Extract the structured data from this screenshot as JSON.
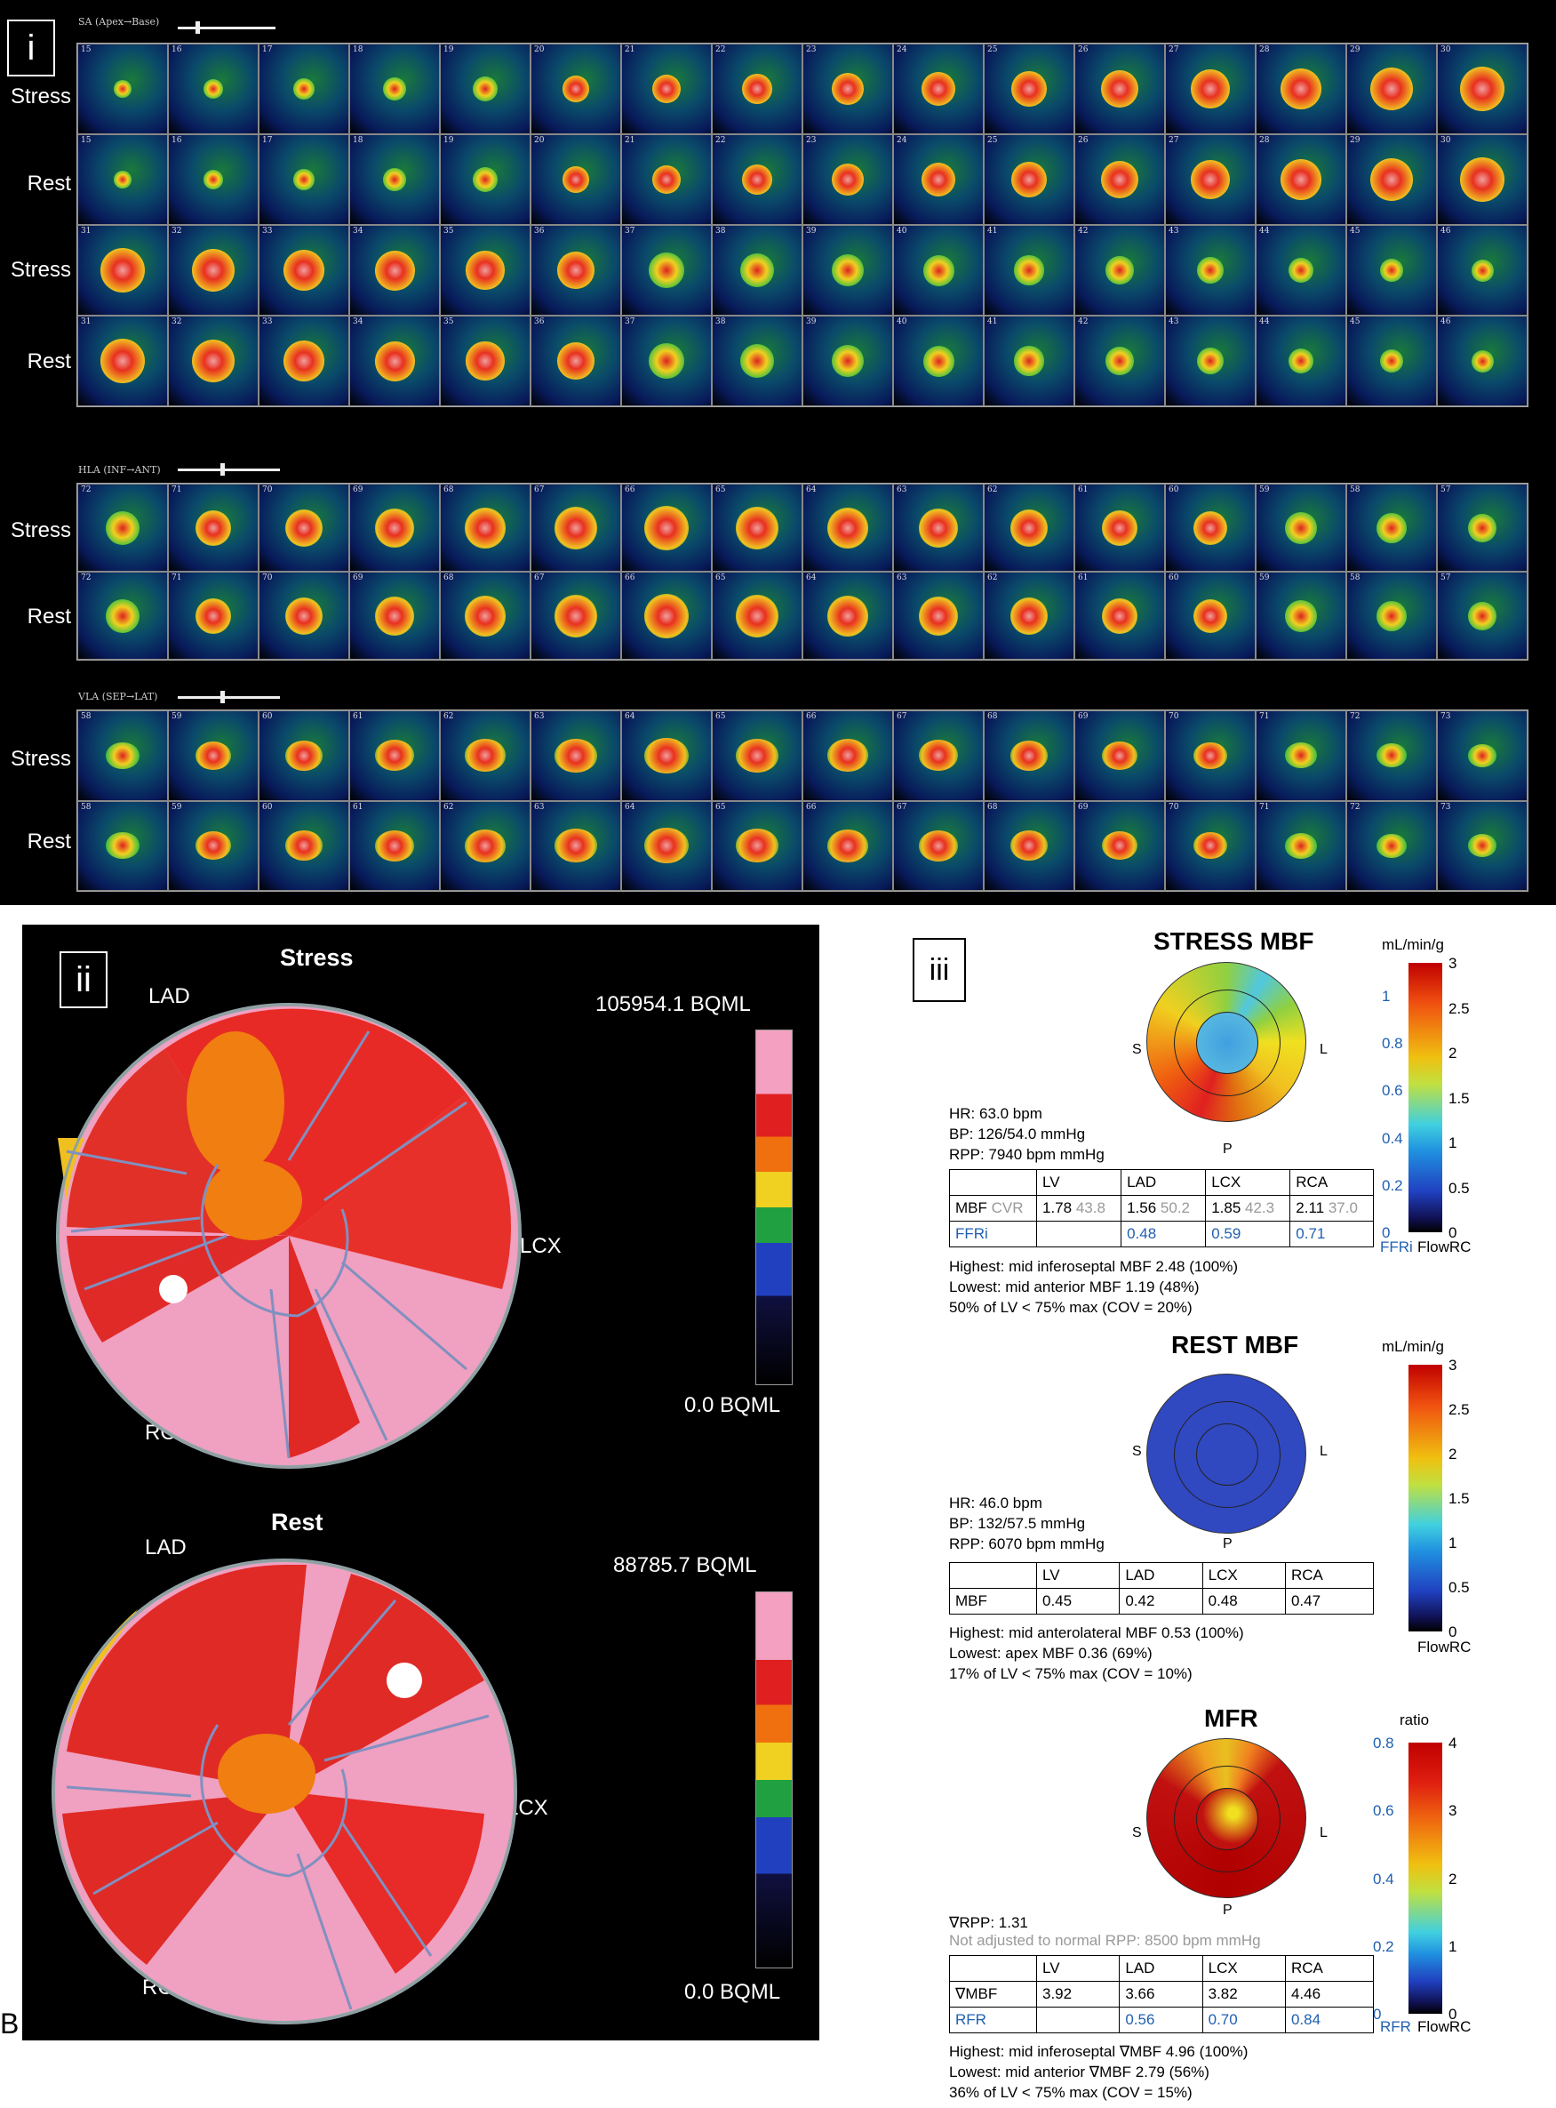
{
  "panel_i": {
    "label": "i",
    "sections": [
      {
        "title": "SA (Apex→Base)",
        "rows": [
          {
            "label": "Stress",
            "numbers": [
              "15",
              "16",
              "17",
              "18",
              "19",
              "20",
              "21",
              "22",
              "23",
              "24",
              "25",
              "26",
              "27",
              "28",
              "29",
              "30"
            ]
          },
          {
            "label": "Rest",
            "numbers": [
              "15",
              "16",
              "17",
              "18",
              "19",
              "20",
              "21",
              "22",
              "23",
              "24",
              "25",
              "26",
              "27",
              "28",
              "29",
              "30"
            ]
          },
          {
            "label": "Stress",
            "numbers": [
              "31",
              "32",
              "33",
              "34",
              "35",
              "36",
              "37",
              "38",
              "39",
              "40",
              "41",
              "42",
              "43",
              "44",
              "45",
              "46"
            ]
          },
          {
            "label": "Rest",
            "numbers": [
              "31",
              "32",
              "33",
              "34",
              "35",
              "36",
              "37",
              "38",
              "39",
              "40",
              "41",
              "42",
              "43",
              "44",
              "45",
              "46"
            ]
          }
        ]
      },
      {
        "title": "HLA (INF→ANT)",
        "rows": [
          {
            "label": "Stress",
            "numbers": [
              "72",
              "71",
              "70",
              "69",
              "68",
              "67",
              "66",
              "65",
              "64",
              "63",
              "62",
              "61",
              "60",
              "59",
              "58",
              "57"
            ]
          },
          {
            "label": "Rest",
            "numbers": [
              "72",
              "71",
              "70",
              "69",
              "68",
              "67",
              "66",
              "65",
              "64",
              "63",
              "62",
              "61",
              "60",
              "59",
              "58",
              "57"
            ]
          }
        ]
      },
      {
        "title": "VLA (SEP→LAT)",
        "rows": [
          {
            "label": "Stress",
            "numbers": [
              "58",
              "59",
              "60",
              "61",
              "62",
              "63",
              "64",
              "65",
              "66",
              "67",
              "68",
              "69",
              "70",
              "71",
              "72",
              "73"
            ]
          },
          {
            "label": "Rest",
            "numbers": [
              "58",
              "59",
              "60",
              "61",
              "62",
              "63",
              "64",
              "65",
              "66",
              "67",
              "68",
              "69",
              "70",
              "71",
              "72",
              "73"
            ]
          }
        ]
      }
    ]
  },
  "panel_ii": {
    "label": "ii",
    "stress": {
      "title": "Stress",
      "max": "105954.1 BQML",
      "min": "0.0 BQML",
      "lad": "LAD",
      "lcx": "LCX",
      "rca": "RCA"
    },
    "rest": {
      "title": "Rest",
      "max": "88785.7 BQML",
      "min": "0.0 BQML",
      "lad": "LAD",
      "lcx": "LCX",
      "rca": "RCA"
    }
  },
  "figure_label": "B",
  "panel_iii": {
    "label": "iii",
    "stress": {
      "title": "STRESS MBF",
      "unit": "mL/min/g",
      "hr": "HR: 63.0 bpm",
      "bp": "BP: 126/54.0 mmHg",
      "rpp": "RPP: 7940 bpm mmHg",
      "table": {
        "headers": [
          "",
          "LV",
          "LAD",
          "LCX",
          "RCA"
        ],
        "row1": {
          "label": "MBF",
          "sub": "CVR",
          "lv": "1.78",
          "lv_cvr": "43.8",
          "lad": "1.56",
          "lad_cvr": "50.2",
          "lcx": "1.85",
          "lcx_cvr": "42.3",
          "rca": "2.11",
          "rca_cvr": "37.0"
        },
        "row2": {
          "label": "FFRi",
          "lv": "",
          "lad": "0.48",
          "lcx": "0.59",
          "rca": "0.71"
        }
      },
      "notes": [
        "Highest: mid inferoseptal MBF 2.48 (100%)",
        "Lowest: mid anterior MBF 1.19 (48%)",
        "50% of LV < 75% max (COV = 20%)"
      ],
      "scale_right": [
        "3",
        "2.5",
        "2",
        "1.5",
        "1",
        "0.5",
        "0"
      ],
      "scale_left": [
        "1",
        "0.8",
        "0.6",
        "0.4",
        "0.2",
        "0"
      ],
      "foot_left": "FFRi",
      "foot_right": "FlowRC",
      "s": "S",
      "l": "L",
      "p": "P"
    },
    "rest": {
      "title": "REST MBF",
      "unit": "mL/min/g",
      "hr": "HR: 46.0 bpm",
      "bp": "BP: 132/57.5 mmHg",
      "rpp": "RPP: 6070 bpm mmHg",
      "table": {
        "headers": [
          "",
          "LV",
          "LAD",
          "LCX",
          "RCA"
        ],
        "row1": {
          "label": "MBF",
          "lv": "0.45",
          "lad": "0.42",
          "lcx": "0.48",
          "rca": "0.47"
        }
      },
      "notes": [
        "Highest: mid anterolateral MBF 0.53 (100%)",
        "Lowest: apex MBF 0.36 (69%)",
        "17% of LV < 75% max (COV = 10%)"
      ],
      "scale_right": [
        "3",
        "2.5",
        "2",
        "1.5",
        "1",
        "0.5",
        "0"
      ],
      "foot_right": "FlowRC",
      "s": "S",
      "l": "L",
      "p": "P"
    },
    "mfr": {
      "title": "MFR",
      "unit": "ratio",
      "rpp": "∇RPP: 1.31",
      "rpp_note": "Not adjusted to normal RPP: 8500 bpm mmHg",
      "table": {
        "headers": [
          "",
          "LV",
          "LAD",
          "LCX",
          "RCA"
        ],
        "row1": {
          "label": "∇MBF",
          "lv": "3.92",
          "lad": "3.66",
          "lcx": "3.82",
          "rca": "4.46"
        },
        "row2": {
          "label": "RFR",
          "lv": "",
          "lad": "0.56",
          "lcx": "0.70",
          "rca": "0.84"
        }
      },
      "notes": [
        "Highest: mid inferoseptal ∇MBF 4.96 (100%)",
        "Lowest: mid anterior ∇MBF 2.79 (56%)",
        "36% of LV < 75% max (COV = 15%)"
      ],
      "scale_right": [
        "4",
        "3",
        "2",
        "1",
        "0"
      ],
      "scale_left": [
        "0.8",
        "0.6",
        "0.4",
        "0.2",
        "0"
      ],
      "foot_left": "RFR",
      "foot_right": "FlowRC",
      "s": "S",
      "l": "L",
      "p": "P"
    }
  }
}
